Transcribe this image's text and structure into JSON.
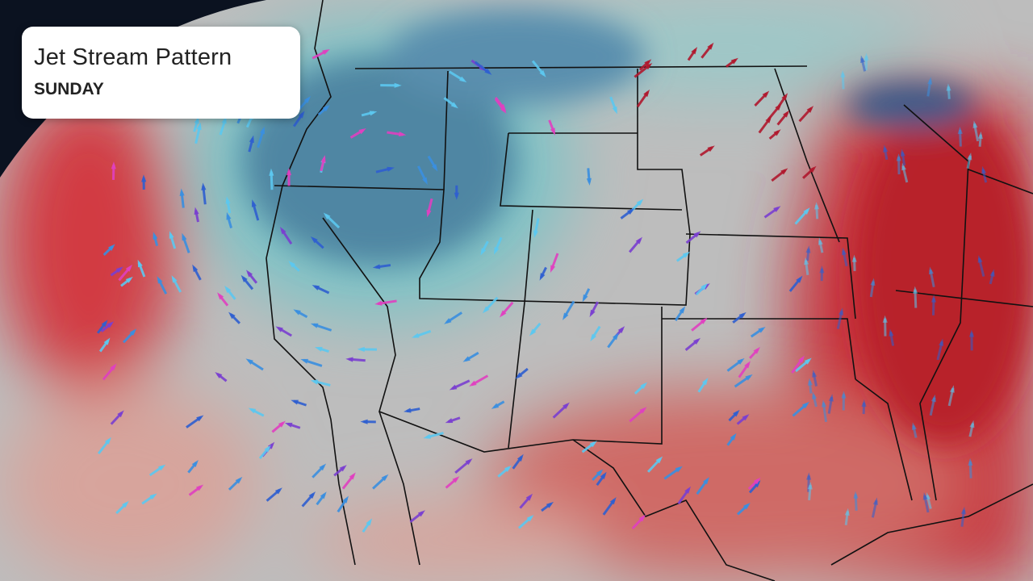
{
  "title_card": {
    "title": "Jet Stream Pattern",
    "subtitle": "SUNDAY"
  },
  "colors": {
    "space": "#0b1220",
    "neutral": "#bdbdbd",
    "trough_blue": "#4f86a3",
    "teal": "#7fc3c6",
    "warm_red": "#c8323a",
    "pink": "#d89a94",
    "border": "#111111"
  },
  "wind_arrow_colors": [
    "#5cc8f0",
    "#3a8fe0",
    "#2f5fd0",
    "#7a3fd0",
    "#e040c0",
    "#b0182e"
  ]
}
